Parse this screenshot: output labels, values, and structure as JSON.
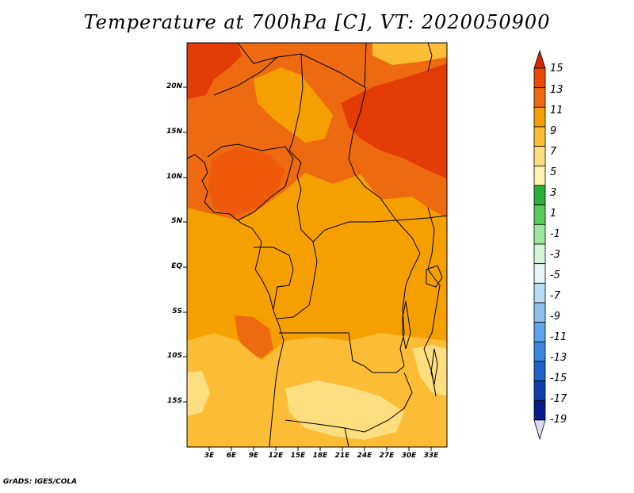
{
  "title": "Temperature at 700hPa [C], VT: 2020050900",
  "credit": "GrADS: IGES/COLA",
  "map": {
    "lat_labels": [
      "20N",
      "15N",
      "10N",
      "5N",
      "EQ",
      "5S",
      "10S",
      "15S"
    ],
    "lon_labels": [
      "3E",
      "6E",
      "9E",
      "12E",
      "15E",
      "18E",
      "21E",
      "24E",
      "27E",
      "30E",
      "33E"
    ],
    "region": "Central and West Africa"
  },
  "colorbar": {
    "labels": [
      "15",
      "13",
      "11",
      "9",
      "7",
      "5",
      "3",
      "1",
      "-1",
      "-3",
      "-5",
      "-7",
      "-9",
      "-11",
      "-13",
      "-15",
      "-17",
      "-19"
    ],
    "colors": [
      "#d42a02",
      "#ec4a0a",
      "#ee6a10",
      "#f5a000",
      "#fbbd35",
      "#fede7e",
      "#fff3b0",
      "#2eae3a",
      "#59cc5c",
      "#9be89c",
      "#d6f5d8",
      "#e8f6f8",
      "#b8dcf6",
      "#8ec1f0",
      "#5ea4ec",
      "#3a86e0",
      "#1e62cc",
      "#0e3fac",
      "#081c8a",
      "#dcdcf5"
    ]
  }
}
